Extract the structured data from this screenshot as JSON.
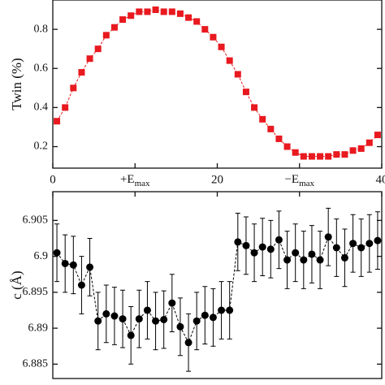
{
  "chart_data": [
    {
      "type": "line",
      "ylabel": "Twin (%)",
      "color": "#e8191f",
      "marker": "square",
      "linestyle": "dashed",
      "x": [
        0.5,
        1.5,
        2.5,
        3.5,
        4.5,
        5.5,
        6.5,
        7.5,
        8.5,
        9.5,
        10.5,
        11.5,
        12.5,
        13.5,
        14.5,
        15.5,
        16.5,
        17.5,
        18.5,
        19.5,
        20.5,
        21.5,
        22.5,
        23.5,
        24.5,
        25.5,
        26.5,
        27.5,
        28.5,
        29.5,
        30.5,
        31.5,
        32.5,
        33.5,
        34.5,
        35.5,
        36.5,
        37.5,
        38.5,
        39.5
      ],
      "values": [
        0.33,
        0.4,
        0.5,
        0.58,
        0.65,
        0.7,
        0.77,
        0.81,
        0.85,
        0.87,
        0.89,
        0.89,
        0.9,
        0.89,
        0.89,
        0.88,
        0.86,
        0.84,
        0.8,
        0.76,
        0.71,
        0.64,
        0.57,
        0.48,
        0.4,
        0.34,
        0.29,
        0.24,
        0.2,
        0.17,
        0.15,
        0.15,
        0.15,
        0.15,
        0.16,
        0.16,
        0.18,
        0.19,
        0.22,
        0.26
      ],
      "xlim": [
        0,
        40
      ],
      "xticks": [
        0,
        {
          "value": 10,
          "label": "+E",
          "sub": "max"
        },
        20,
        {
          "value": 30,
          "label": "−E",
          "sub": "max"
        },
        40
      ],
      "ylim": [
        0.09,
        0.95
      ],
      "yticks": [
        0.2,
        0.4,
        0.6,
        0.8
      ]
    },
    {
      "type": "errorbar",
      "ylabel": "c (Å)",
      "color": "#000000",
      "marker": "circle",
      "linestyle": "dashed",
      "x": [
        0.5,
        1.5,
        2.5,
        3.5,
        4.5,
        5.5,
        6.5,
        7.5,
        8.5,
        9.5,
        10.5,
        11.5,
        12.5,
        13.5,
        14.5,
        15.5,
        16.5,
        17.5,
        18.5,
        19.5,
        20.5,
        21.5,
        22.5,
        23.5,
        24.5,
        25.5,
        26.5,
        27.5,
        28.5,
        29.5,
        30.5,
        31.5,
        32.5,
        33.5,
        34.5,
        35.5,
        36.5,
        37.5,
        38.5,
        39.5
      ],
      "values": [
        6.9005,
        6.899,
        6.8988,
        6.896,
        6.8985,
        6.891,
        6.892,
        6.8917,
        6.8913,
        6.889,
        6.8913,
        6.8925,
        6.891,
        6.8912,
        6.8935,
        6.8902,
        6.888,
        6.891,
        6.8918,
        6.8915,
        6.8925,
        6.8925,
        6.902,
        6.9015,
        6.9005,
        6.9013,
        6.901,
        6.9023,
        6.8995,
        6.9005,
        6.8995,
        6.9003,
        6.8995,
        6.9027,
        6.9012,
        6.8998,
        6.9018,
        6.9012,
        6.9018,
        6.9022
      ],
      "errors": [
        0.004,
        0.004,
        0.004,
        0.004,
        0.004,
        0.004,
        0.004,
        0.004,
        0.004,
        0.004,
        0.004,
        0.004,
        0.004,
        0.004,
        0.004,
        0.004,
        0.004,
        0.004,
        0.004,
        0.004,
        0.004,
        0.004,
        0.004,
        0.004,
        0.004,
        0.004,
        0.004,
        0.004,
        0.004,
        0.004,
        0.004,
        0.004,
        0.004,
        0.004,
        0.004,
        0.004,
        0.004,
        0.004,
        0.004,
        0.004
      ],
      "xlim": [
        0,
        40
      ],
      "ylim": [
        6.883,
        6.909
      ],
      "yticks": [
        6.885,
        6.89,
        6.895,
        6.9,
        6.905
      ]
    }
  ]
}
